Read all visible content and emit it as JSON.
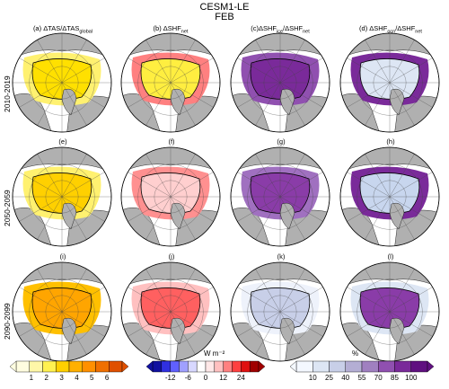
{
  "figure": {
    "title_line1": "CESM1-LE",
    "title_line2": "FEB",
    "columns": [
      {
        "pre": "(a) ΔTAS/ΔTAS",
        "sub": "global",
        "post": ""
      },
      {
        "pre": "(b) ΔSHF",
        "sub": "net",
        "post": ""
      },
      {
        "pre": "(c)ΔSHF",
        "sub": "ice",
        "mid": "/ΔSHF",
        "sub2": "net"
      },
      {
        "pre": "(d) ΔSHF",
        "sub": "ocn",
        "mid": "/ΔSHF",
        "sub2": "net"
      }
    ],
    "rows": [
      "2010-2019",
      "2050-2059",
      "2090-2099"
    ],
    "panel_labels": [
      "(e)",
      "(f)",
      "(g)",
      "(h)",
      "(i)",
      "(j)",
      "(k)",
      "(l)"
    ]
  },
  "colorbars": [
    {
      "name": "tas-ratio",
      "unit": "",
      "ticks": [
        "1",
        "2",
        "3",
        "4",
        "5",
        "6"
      ],
      "colors": [
        "#fffde0",
        "#fff7a8",
        "#fff150",
        "#ffd000",
        "#ffb000",
        "#ff9000",
        "#f07000",
        "#e05000"
      ]
    },
    {
      "name": "shf-net",
      "unit": "W m⁻²",
      "ticks": [
        "-12",
        "-6",
        "0",
        "12",
        "24"
      ],
      "colors": [
        "#1010a0",
        "#3030e0",
        "#6060ff",
        "#a0a0ff",
        "#d8d8ff",
        "#ffffff",
        "#ffe8e8",
        "#ffc0c0",
        "#ff8080",
        "#ff4040",
        "#e01010",
        "#a00000"
      ]
    },
    {
      "name": "shf-fraction",
      "unit": "%",
      "ticks": [
        "10",
        "25",
        "40",
        "55",
        "70",
        "85",
        "100"
      ],
      "colors": [
        "#f4f8ff",
        "#dde6f4",
        "#c8cfe8",
        "#b4aed4",
        "#a080c0",
        "#9050b0",
        "#7a2a9a",
        "#601080"
      ]
    }
  ]
}
